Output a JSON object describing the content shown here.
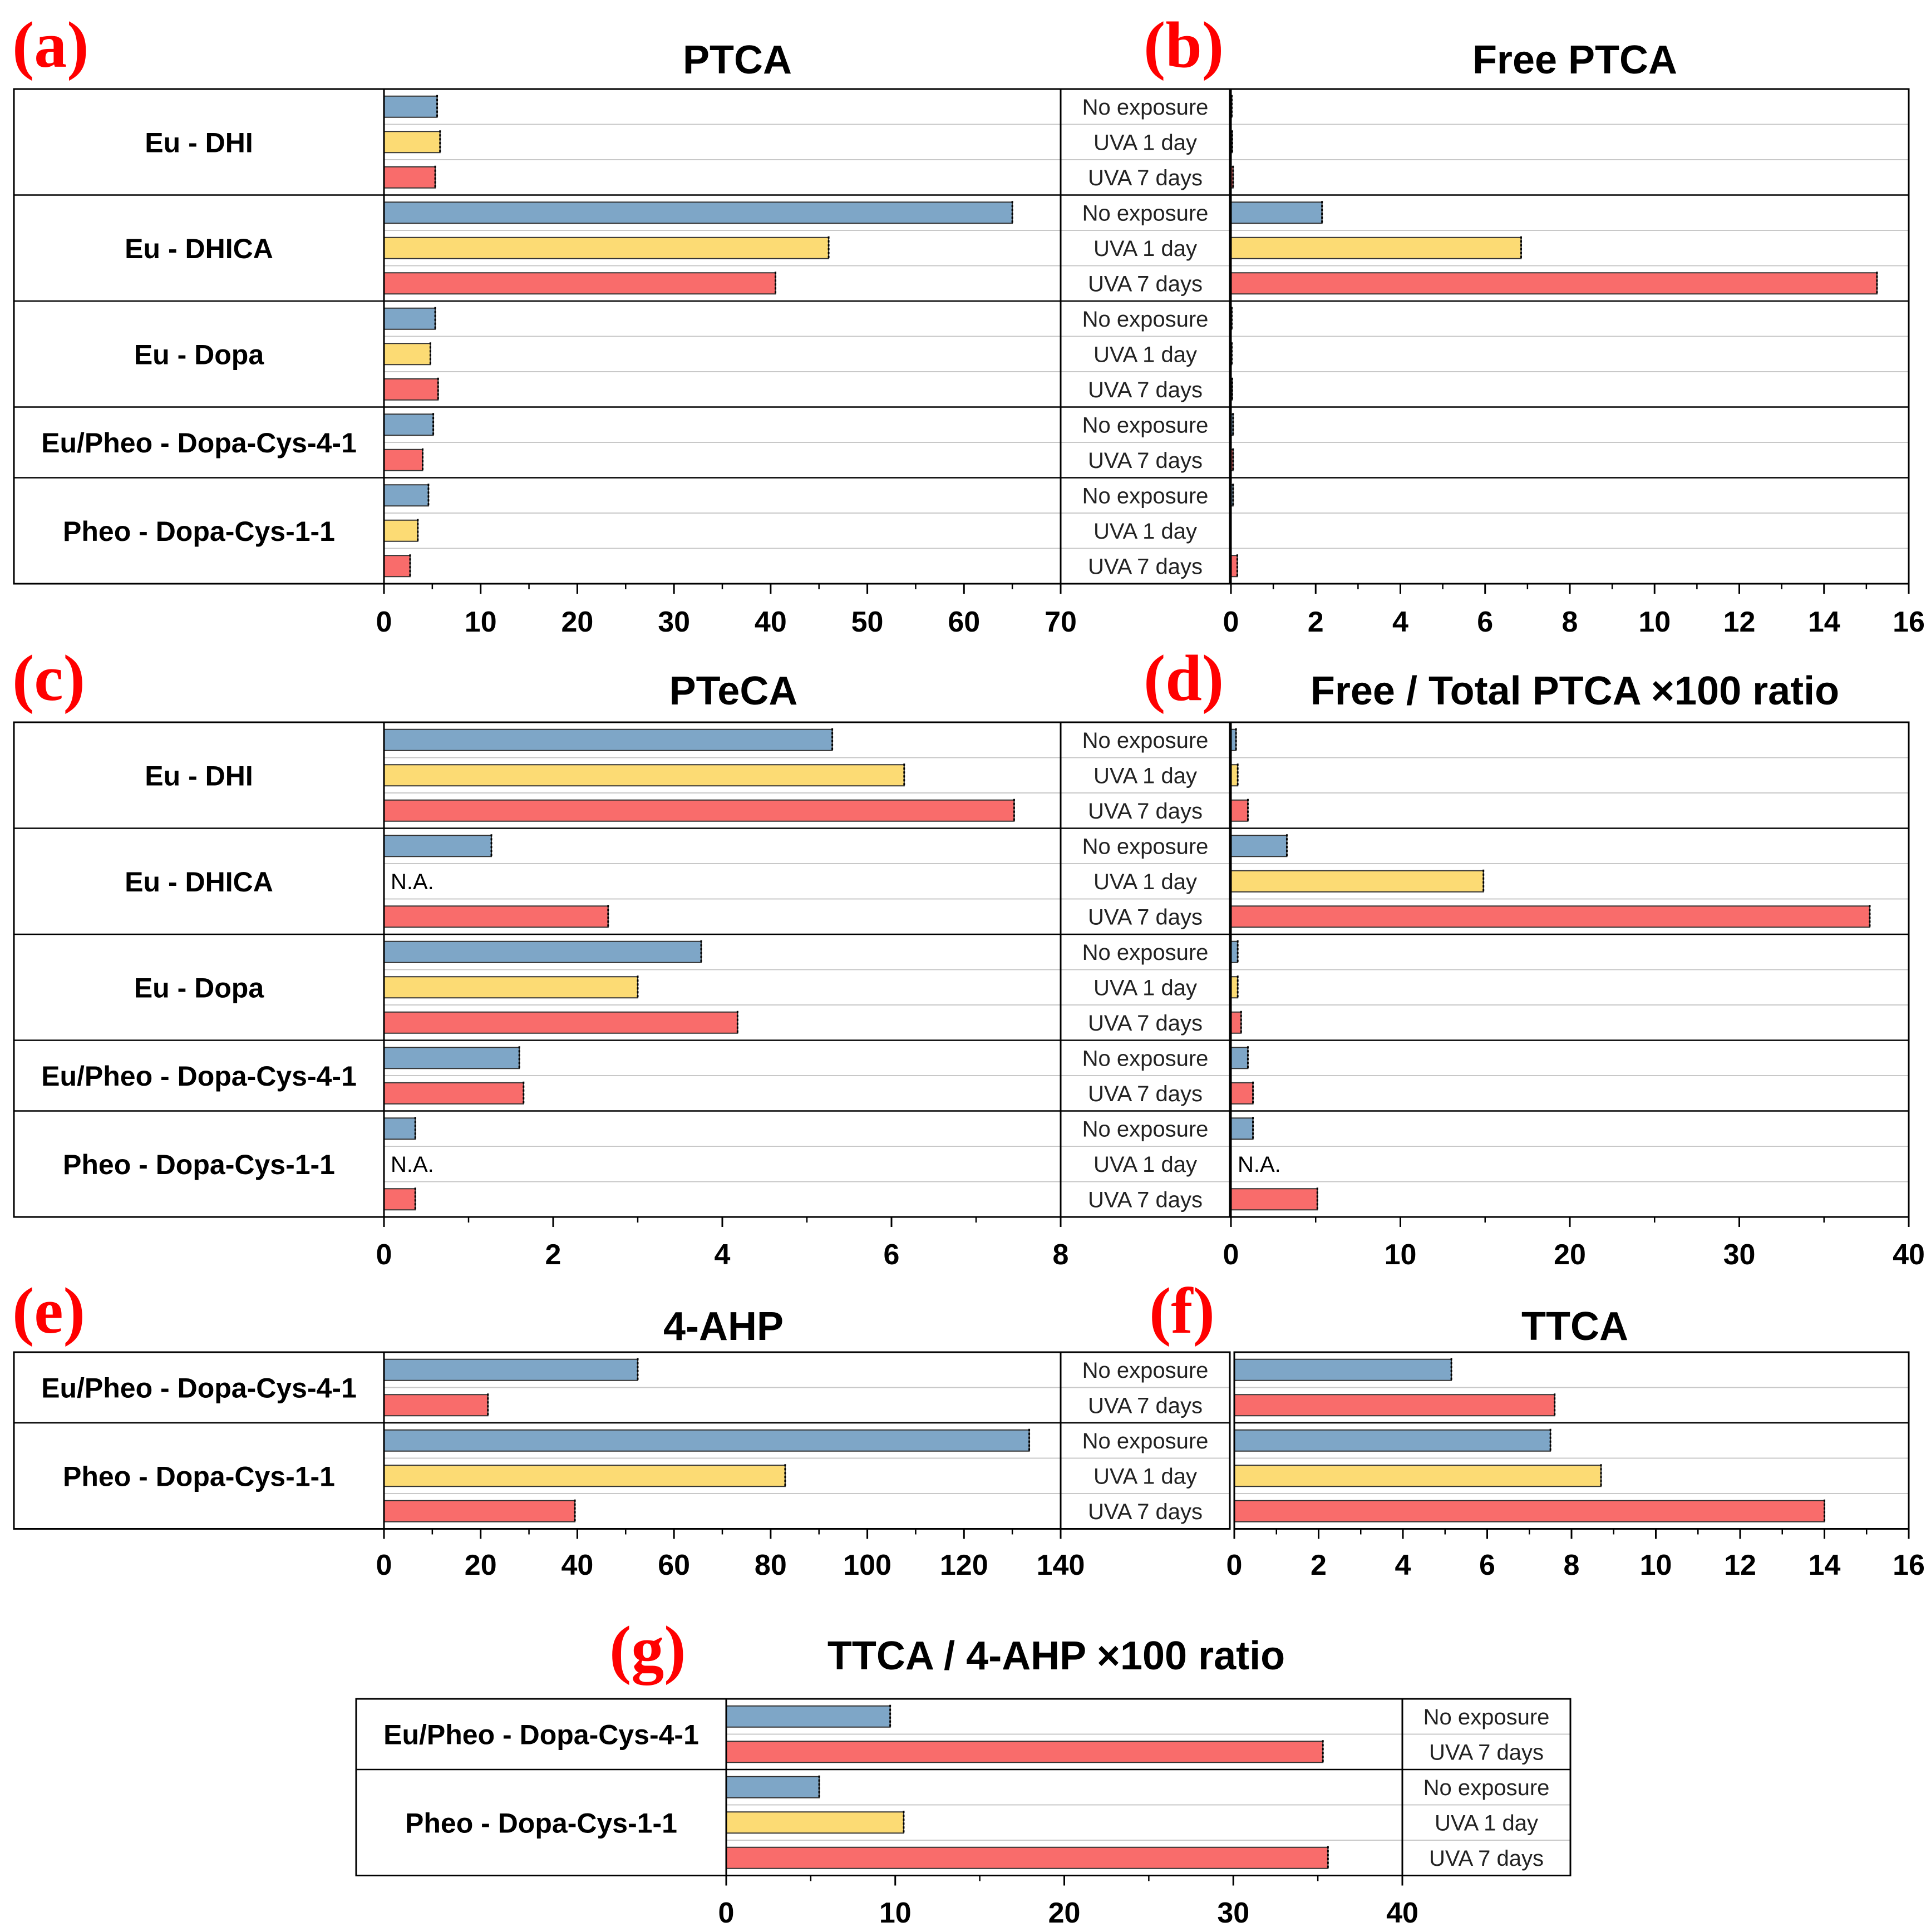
{
  "colors": {
    "No exposure": "#7ea6c7",
    "UVA 1 day": "#fcdb74",
    "UVA 7 days": "#f96c6b",
    "panel_letter": "#ff0000"
  },
  "na_text": "N.A.",
  "chart_data": [
    {
      "id": "a",
      "letter": "(a)",
      "title": "PTCA",
      "type": "bar",
      "orientation": "horizontal",
      "xlim": [
        0,
        70
      ],
      "xticks": [
        0,
        10,
        20,
        30,
        40,
        50,
        60,
        70
      ],
      "groups": [
        {
          "name": "Eu - DHI",
          "rows": [
            {
              "cond": "No exposure",
              "value": 5.5
            },
            {
              "cond": "UVA 1 day",
              "value": 5.8
            },
            {
              "cond": "UVA 7 days",
              "value": 5.3
            }
          ]
        },
        {
          "name": "Eu - DHICA",
          "rows": [
            {
              "cond": "No exposure",
              "value": 65
            },
            {
              "cond": "UVA 1 day",
              "value": 46
            },
            {
              "cond": "UVA 7 days",
              "value": 40.5
            }
          ]
        },
        {
          "name": "Eu - Dopa",
          "rows": [
            {
              "cond": "No exposure",
              "value": 5.3
            },
            {
              "cond": "UVA 1 day",
              "value": 4.8
            },
            {
              "cond": "UVA 7 days",
              "value": 5.6
            }
          ]
        },
        {
          "name": "Eu/Pheo - Dopa-Cys-4-1",
          "rows": [
            {
              "cond": "No exposure",
              "value": 5.1
            },
            {
              "cond": "UVA 7 days",
              "value": 4.0
            }
          ]
        },
        {
          "name": "Pheo - Dopa-Cys-1-1",
          "rows": [
            {
              "cond": "No exposure",
              "value": 4.6
            },
            {
              "cond": "UVA 1 day",
              "value": 3.5
            },
            {
              "cond": "UVA 7 days",
              "value": 2.7
            }
          ]
        }
      ]
    },
    {
      "id": "b",
      "letter": "(b)",
      "title": "Free PTCA",
      "type": "bar",
      "orientation": "horizontal",
      "xlim": [
        0,
        16
      ],
      "xticks": [
        0,
        2,
        4,
        6,
        8,
        10,
        12,
        14,
        16
      ],
      "groups": [
        {
          "name": "Eu - DHI",
          "rows": [
            {
              "cond": "No exposure",
              "value": 0.02
            },
            {
              "cond": "UVA 1 day",
              "value": 0.03
            },
            {
              "cond": "UVA 7 days",
              "value": 0.05
            }
          ]
        },
        {
          "name": "Eu - DHICA",
          "rows": [
            {
              "cond": "No exposure",
              "value": 2.15
            },
            {
              "cond": "UVA 1 day",
              "value": 6.85
            },
            {
              "cond": "UVA 7 days",
              "value": 15.25
            }
          ]
        },
        {
          "name": "Eu - Dopa",
          "rows": [
            {
              "cond": "No exposure",
              "value": 0.02
            },
            {
              "cond": "UVA 1 day",
              "value": 0.02
            },
            {
              "cond": "UVA 7 days",
              "value": 0.03
            }
          ]
        },
        {
          "name": "Eu/Pheo - Dopa-Cys-4-1",
          "rows": [
            {
              "cond": "No exposure",
              "value": 0.05
            },
            {
              "cond": "UVA 7 days",
              "value": 0.05
            }
          ]
        },
        {
          "name": "Pheo - Dopa-Cys-1-1",
          "rows": [
            {
              "cond": "No exposure",
              "value": 0.05
            },
            {
              "cond": "UVA 1 day",
              "value": 0
            },
            {
              "cond": "UVA 7 days",
              "value": 0.15
            }
          ]
        }
      ]
    },
    {
      "id": "c",
      "letter": "(c)",
      "title": "PTeCA",
      "type": "bar",
      "orientation": "horizontal",
      "xlim": [
        0,
        8
      ],
      "xticks": [
        0,
        2,
        4,
        6,
        8
      ],
      "groups": [
        {
          "name": "Eu - DHI",
          "rows": [
            {
              "cond": "No exposure",
              "value": 5.3
            },
            {
              "cond": "UVA 1 day",
              "value": 6.15
            },
            {
              "cond": "UVA 7 days",
              "value": 7.45
            }
          ]
        },
        {
          "name": "Eu - DHICA",
          "rows": [
            {
              "cond": "No exposure",
              "value": 1.27
            },
            {
              "cond": "UVA 1 day",
              "value": null
            },
            {
              "cond": "UVA 7 days",
              "value": 2.65
            }
          ]
        },
        {
          "name": "Eu - Dopa",
          "rows": [
            {
              "cond": "No exposure",
              "value": 3.75
            },
            {
              "cond": "UVA 1 day",
              "value": 3.0
            },
            {
              "cond": "UVA 7 days",
              "value": 4.18
            }
          ]
        },
        {
          "name": "Eu/Pheo - Dopa-Cys-4-1",
          "rows": [
            {
              "cond": "No exposure",
              "value": 1.6
            },
            {
              "cond": "UVA 7 days",
              "value": 1.65
            }
          ]
        },
        {
          "name": "Pheo - Dopa-Cys-1-1",
          "rows": [
            {
              "cond": "No exposure",
              "value": 0.37
            },
            {
              "cond": "UVA 1 day",
              "value": null
            },
            {
              "cond": "UVA 7 days",
              "value": 0.37
            }
          ]
        }
      ]
    },
    {
      "id": "d",
      "letter": "(d)",
      "title": "Free / Total PTCA ×100 ratio",
      "type": "bar",
      "orientation": "horizontal",
      "xlim": [
        0,
        40
      ],
      "xticks": [
        0,
        10,
        20,
        30,
        40
      ],
      "groups": [
        {
          "name": "Eu - DHI",
          "rows": [
            {
              "cond": "No exposure",
              "value": 0.3
            },
            {
              "cond": "UVA 1 day",
              "value": 0.4
            },
            {
              "cond": "UVA 7 days",
              "value": 1.0
            }
          ]
        },
        {
          "name": "Eu - DHICA",
          "rows": [
            {
              "cond": "No exposure",
              "value": 3.3
            },
            {
              "cond": "UVA 1 day",
              "value": 14.9
            },
            {
              "cond": "UVA 7 days",
              "value": 37.7
            }
          ]
        },
        {
          "name": "Eu - Dopa",
          "rows": [
            {
              "cond": "No exposure",
              "value": 0.4
            },
            {
              "cond": "UVA 1 day",
              "value": 0.4
            },
            {
              "cond": "UVA 7 days",
              "value": 0.6
            }
          ]
        },
        {
          "name": "Eu/Pheo - Dopa-Cys-4-1",
          "rows": [
            {
              "cond": "No exposure",
              "value": 1.0
            },
            {
              "cond": "UVA 7 days",
              "value": 1.3
            }
          ]
        },
        {
          "name": "Pheo - Dopa-Cys-1-1",
          "rows": [
            {
              "cond": "No exposure",
              "value": 1.3
            },
            {
              "cond": "UVA 1 day",
              "value": null
            },
            {
              "cond": "UVA 7 days",
              "value": 5.1
            }
          ]
        }
      ]
    },
    {
      "id": "e",
      "letter": "(e)",
      "title": "4-AHP",
      "type": "bar",
      "orientation": "horizontal",
      "xlim": [
        0,
        140
      ],
      "xticks": [
        0,
        20,
        40,
        60,
        80,
        100,
        120,
        140
      ],
      "groups": [
        {
          "name": "Eu/Pheo - Dopa-Cys-4-1",
          "rows": [
            {
              "cond": "No exposure",
              "value": 52.5
            },
            {
              "cond": "UVA 7 days",
              "value": 21.5
            }
          ]
        },
        {
          "name": "Pheo - Dopa-Cys-1-1",
          "rows": [
            {
              "cond": "No exposure",
              "value": 133.5
            },
            {
              "cond": "UVA 1 day",
              "value": 83
            },
            {
              "cond": "UVA 7 days",
              "value": 39.5
            }
          ]
        }
      ]
    },
    {
      "id": "f",
      "letter": "(f)",
      "title": "TTCA",
      "type": "bar",
      "orientation": "horizontal",
      "xlim": [
        0,
        16
      ],
      "xticks": [
        0,
        2,
        4,
        6,
        8,
        10,
        12,
        14,
        16
      ],
      "groups": [
        {
          "name": "Eu/Pheo - Dopa-Cys-4-1",
          "rows": [
            {
              "cond": "No exposure",
              "value": 5.15
            },
            {
              "cond": "UVA 7 days",
              "value": 7.6
            }
          ]
        },
        {
          "name": "Pheo - Dopa-Cys-1-1",
          "rows": [
            {
              "cond": "No exposure",
              "value": 7.5
            },
            {
              "cond": "UVA 1 day",
              "value": 8.7
            },
            {
              "cond": "UVA 7 days",
              "value": 14.0
            }
          ]
        }
      ]
    },
    {
      "id": "g",
      "letter": "(g)",
      "title": "TTCA / 4-AHP ×100 ratio",
      "type": "bar",
      "orientation": "horizontal",
      "xlim": [
        0,
        40
      ],
      "xticks": [
        0,
        10,
        20,
        30,
        40
      ],
      "groups": [
        {
          "name": "Eu/Pheo - Dopa-Cys-4-1",
          "rows": [
            {
              "cond": "No exposure",
              "value": 9.7
            },
            {
              "cond": "UVA 7 days",
              "value": 35.3
            }
          ]
        },
        {
          "name": "Pheo - Dopa-Cys-1-1",
          "rows": [
            {
              "cond": "No exposure",
              "value": 5.5
            },
            {
              "cond": "UVA 1 day",
              "value": 10.5
            },
            {
              "cond": "UVA 7 days",
              "value": 35.6
            }
          ]
        }
      ]
    }
  ]
}
